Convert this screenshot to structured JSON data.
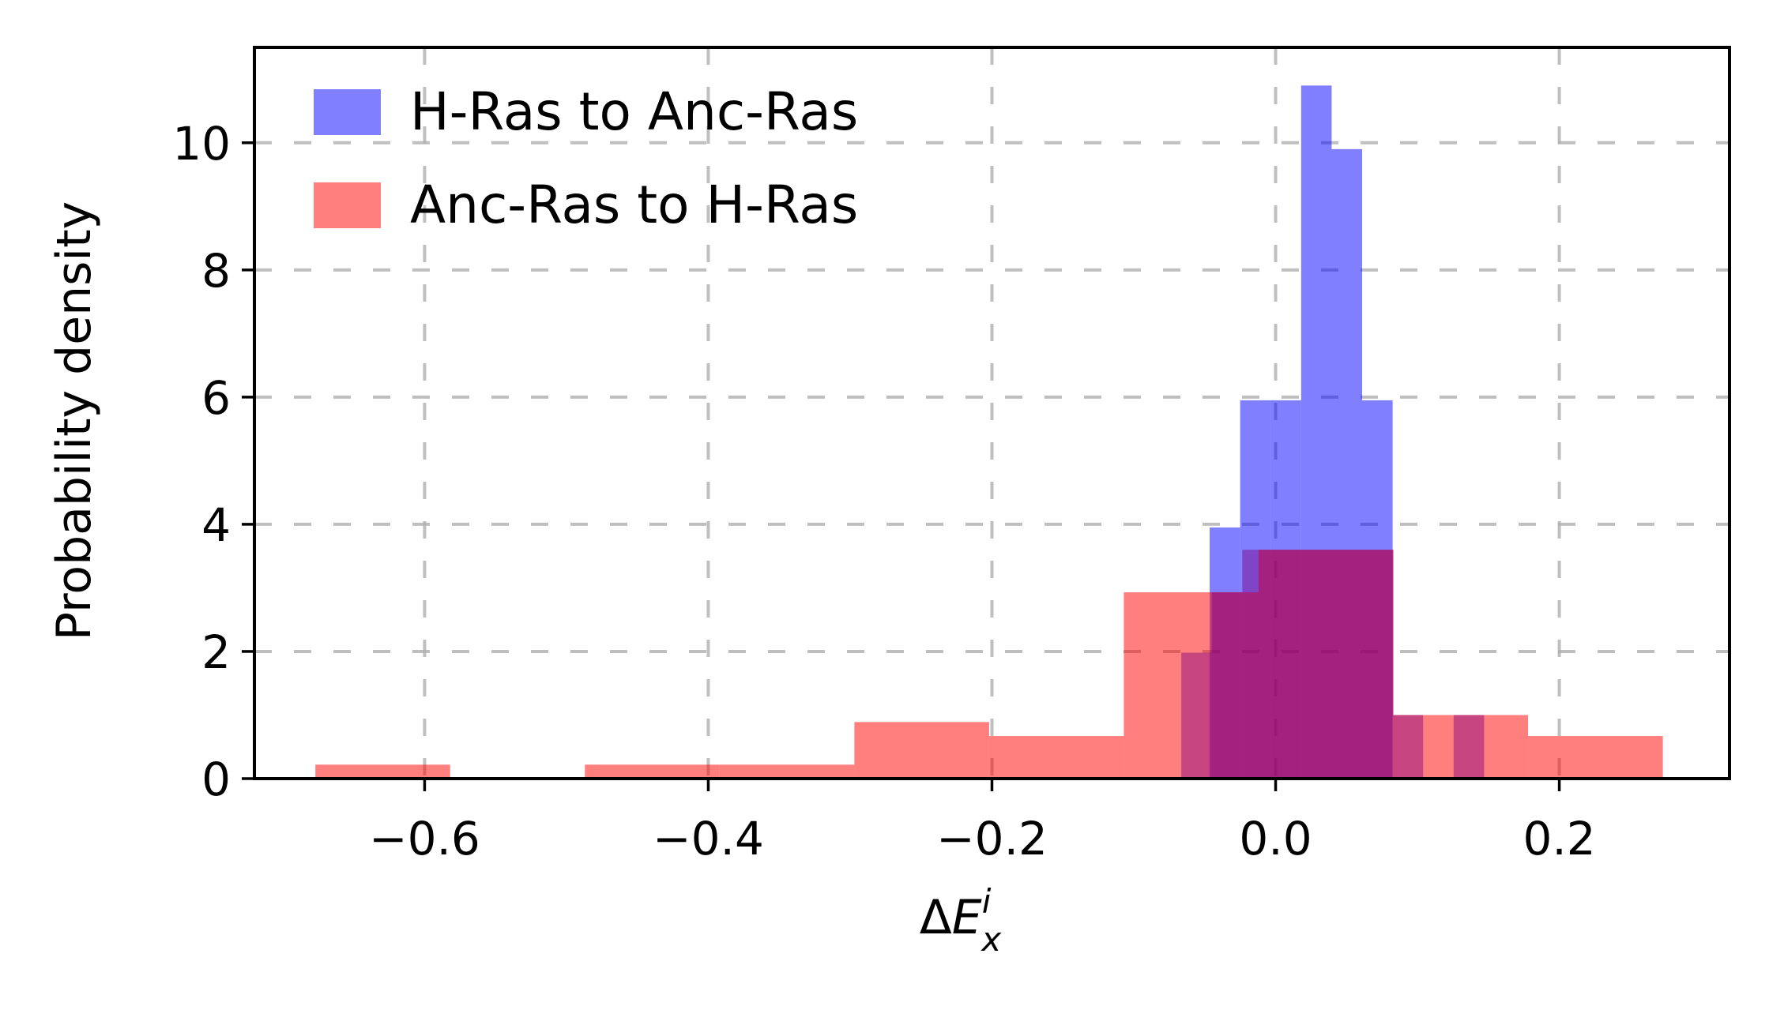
{
  "chart_data": {
    "type": "bar",
    "xlabel": "ΔE_x^i",
    "xlabel_parts": {
      "delta": "Δ",
      "E": "E",
      "sub": "x",
      "sup": "i"
    },
    "ylabel": "Probability density",
    "xlim": [
      -0.72,
      0.32
    ],
    "ylim": [
      0,
      11.5
    ],
    "xticks": [
      -0.6,
      -0.4,
      -0.2,
      0.0,
      0.2
    ],
    "xtick_labels": [
      "−0.6",
      "−0.4",
      "−0.2",
      "0.0",
      "0.2"
    ],
    "yticks": [
      0,
      2,
      4,
      6,
      8,
      10
    ],
    "ytick_labels": [
      "0",
      "2",
      "4",
      "6",
      "8",
      "10"
    ],
    "grid": true,
    "legend_position": "upper-left",
    "series": [
      {
        "name": "H-Ras to Anc-Ras",
        "color": "#0000ff",
        "alpha": 0.5,
        "bins": [
          {
            "x0": -0.0465,
            "x1": -0.025,
            "y": 3.95
          },
          {
            "x0": -0.025,
            "x1": -0.0035,
            "y": 5.95
          },
          {
            "x0": -0.0035,
            "x1": 0.018,
            "y": 5.95
          },
          {
            "x0": 0.018,
            "x1": 0.0395,
            "y": 10.9
          },
          {
            "x0": 0.0395,
            "x1": 0.061,
            "y": 9.9
          },
          {
            "x0": 0.061,
            "x1": 0.0825,
            "y": 5.95
          }
        ]
      },
      {
        "name": "Anc-Ras to H-Ras",
        "color": "#ff0000",
        "alpha": 0.5,
        "bins": [
          {
            "x0": -0.677,
            "x1": -0.582,
            "y": 0.22
          },
          {
            "x0": -0.487,
            "x1": -0.392,
            "y": 0.22
          },
          {
            "x0": -0.392,
            "x1": -0.297,
            "y": 0.22
          },
          {
            "x0": -0.297,
            "x1": -0.202,
            "y": 0.89
          },
          {
            "x0": -0.202,
            "x1": -0.107,
            "y": 0.67
          },
          {
            "x0": -0.107,
            "x1": -0.012,
            "y": 2.93
          },
          {
            "x0": -0.012,
            "x1": 0.083,
            "y": 3.6
          },
          {
            "x0": 0.083,
            "x1": 0.178,
            "y": 1.0
          },
          {
            "x0": 0.178,
            "x1": 0.273,
            "y": 0.67
          }
        ]
      },
      {
        "name": "",
        "color": "#800080",
        "alpha": 0.45,
        "bins": [
          {
            "x0": -0.0665,
            "x1": -0.045,
            "y": 1.98
          },
          {
            "x0": -0.045,
            "x1": -0.0235,
            "y": 2.93
          },
          {
            "x0": -0.0235,
            "x1": 0.083,
            "y": 3.6
          },
          {
            "x0": 0.083,
            "x1": 0.104,
            "y": 1.0
          },
          {
            "x0": 0.1255,
            "x1": 0.147,
            "y": 1.0
          }
        ]
      }
    ]
  }
}
